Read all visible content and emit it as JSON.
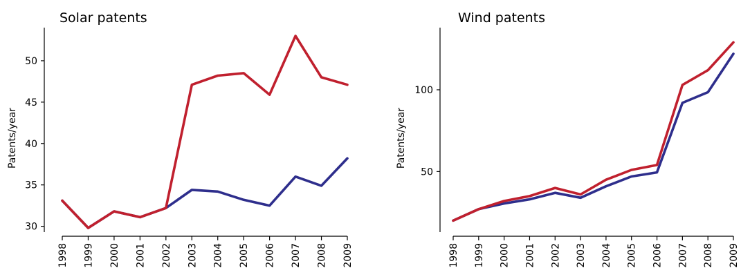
{
  "colors": {
    "red": "#c0202e",
    "blue": "#2e2e8c"
  },
  "chart_data": [
    {
      "type": "line",
      "title": "Solar patents",
      "xlabel": "",
      "ylabel": "Patents/year",
      "categories": [
        "1998",
        "1999",
        "2000",
        "2001",
        "2002",
        "2003",
        "2004",
        "2005",
        "2006",
        "2007",
        "2008",
        "2009"
      ],
      "yticks": [
        30,
        35,
        40,
        45,
        50
      ],
      "ylim": [
        29.3,
        54
      ],
      "series": [
        {
          "color": "red",
          "values": [
            33.1,
            29.8,
            31.8,
            31.1,
            32.2,
            47.1,
            48.2,
            48.5,
            45.9,
            53.0,
            48.0,
            47.1
          ]
        },
        {
          "color": "blue",
          "values": [
            33.1,
            29.8,
            31.8,
            31.1,
            32.2,
            34.4,
            34.2,
            33.2,
            32.5,
            36.0,
            34.9,
            38.2
          ]
        }
      ]
    },
    {
      "type": "line",
      "title": "Wind patents",
      "xlabel": "",
      "ylabel": "Patents/year",
      "categories": [
        "1998",
        "1999",
        "2000",
        "2001",
        "2002",
        "2003",
        "2004",
        "2005",
        "2006",
        "2007",
        "2008",
        "2009"
      ],
      "yticks": [
        50,
        100
      ],
      "ylim": [
        13,
        138
      ],
      "series": [
        {
          "color": "red",
          "values": [
            20,
            27,
            32,
            35,
            40,
            36,
            45,
            51,
            54,
            103,
            112,
            129
          ]
        },
        {
          "color": "blue",
          "values": [
            20,
            27,
            30.5,
            33,
            37,
            34,
            41,
            47,
            49.5,
            92,
            98.5,
            122
          ]
        }
      ]
    }
  ]
}
